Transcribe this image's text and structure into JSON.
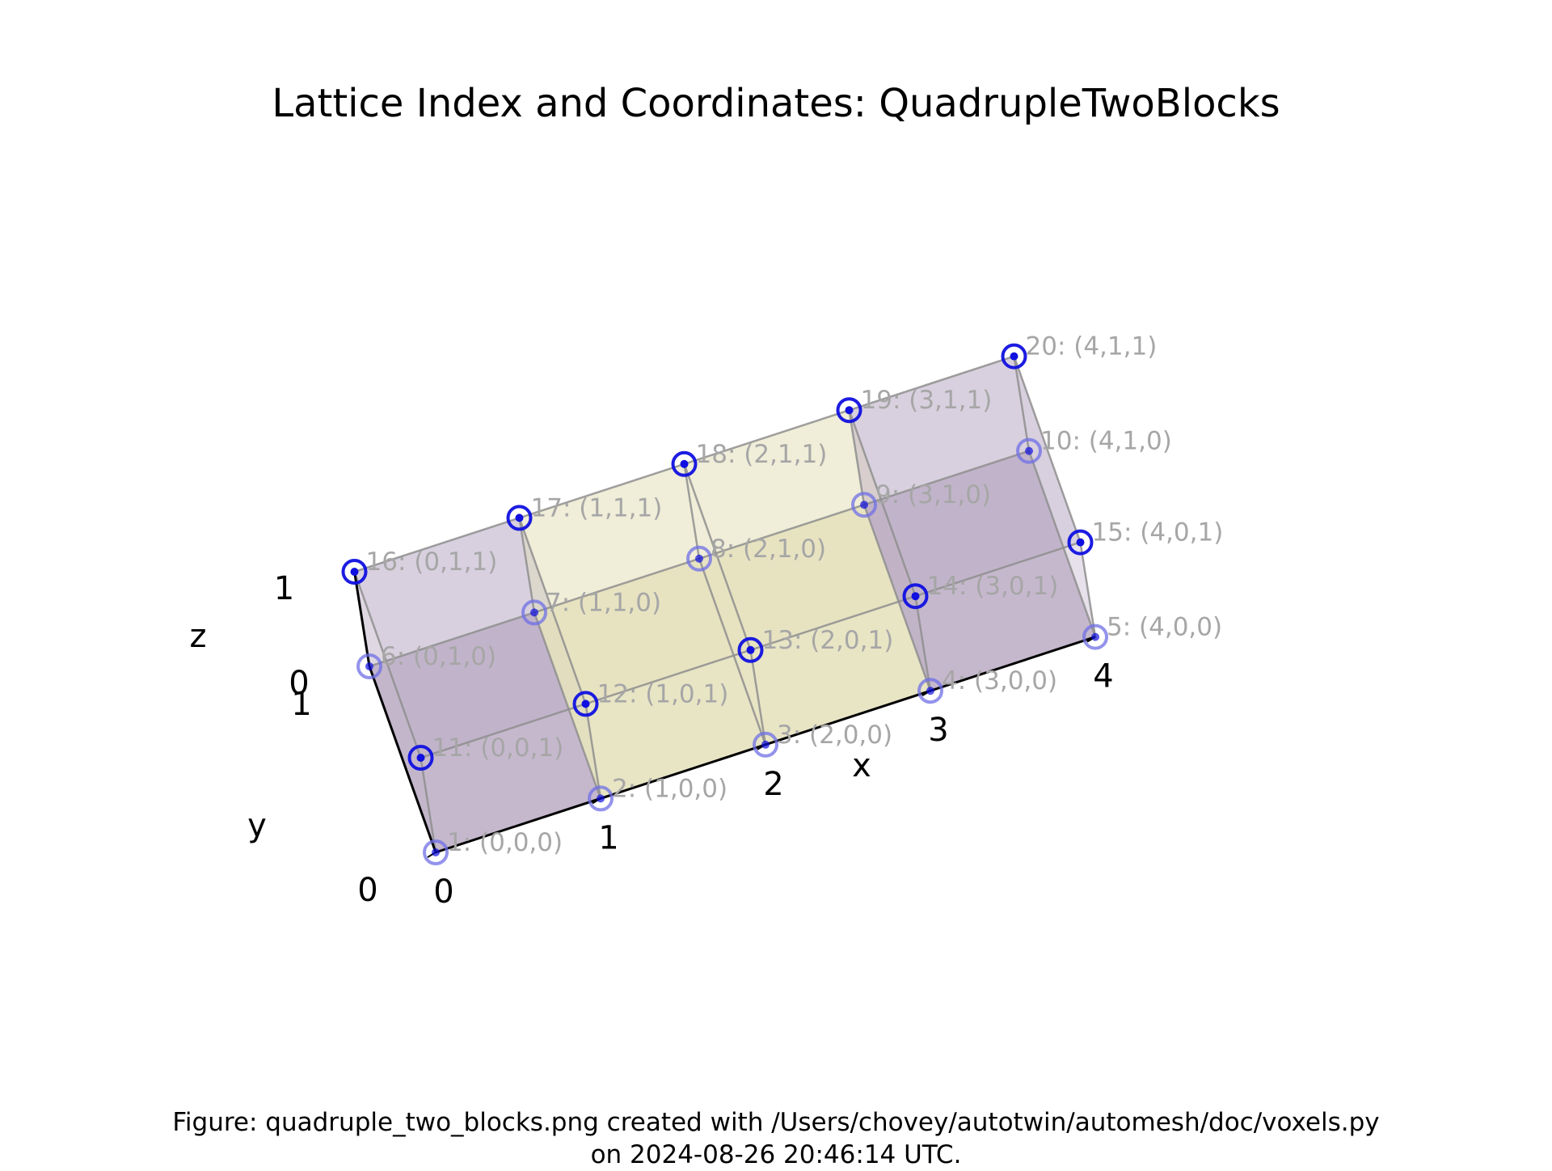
{
  "title": "Lattice Index and Coordinates: QuadrupleTwoBlocks",
  "caption": {
    "line1": "Figure: quadruple_two_blocks.png created with /Users/chovey/autotwin/automesh/doc/voxels.py",
    "line2": "on 2024-08-26 20:46:14 UTC."
  },
  "axes": {
    "x": {
      "label": "x",
      "ticks": [
        "0",
        "1",
        "2",
        "3",
        "4"
      ]
    },
    "y": {
      "label": "y",
      "ticks": [
        "0",
        "1"
      ]
    },
    "z": {
      "label": "z",
      "ticks": [
        "0",
        "1"
      ]
    }
  },
  "colors": {
    "point": "#1010e0",
    "point_ring_faded": "#6f6fe6",
    "block_purple": "#b8a9c2",
    "block_yellow": "#e3dfb8",
    "edge": "#8e8e8e",
    "label": "#a6a6a6"
  },
  "blocks": [
    {
      "x0": 0,
      "x1": 1,
      "color": "purple"
    },
    {
      "x0": 1,
      "x1": 3,
      "color": "yellow"
    },
    {
      "x0": 3,
      "x1": 4,
      "color": "purple"
    }
  ],
  "nodes": [
    {
      "label": "1: (0,0,0)"
    },
    {
      "label": "2: (1,0,0)"
    },
    {
      "label": "3: (2,0,0)"
    },
    {
      "label": "4: (3,0,0)"
    },
    {
      "label": "5: (4,0,0)"
    },
    {
      "label": "6: (0,1,0)"
    },
    {
      "label": "7: (1,1,0)"
    },
    {
      "label": "8: (2,1,0)"
    },
    {
      "label": "9: (3,1,0)"
    },
    {
      "label": "10: (4,1,0)"
    },
    {
      "label": "11: (0,0,1)"
    },
    {
      "label": "12: (1,0,1)"
    },
    {
      "label": "13: (2,0,1)"
    },
    {
      "label": "14: (3,0,1)"
    },
    {
      "label": "15: (4,0,1)"
    },
    {
      "label": "16: (0,1,1)"
    },
    {
      "label": "17: (1,1,1)"
    },
    {
      "label": "18: (2,1,1)"
    },
    {
      "label": "19: (3,1,1)"
    },
    {
      "label": "20: (4,1,1)"
    }
  ]
}
